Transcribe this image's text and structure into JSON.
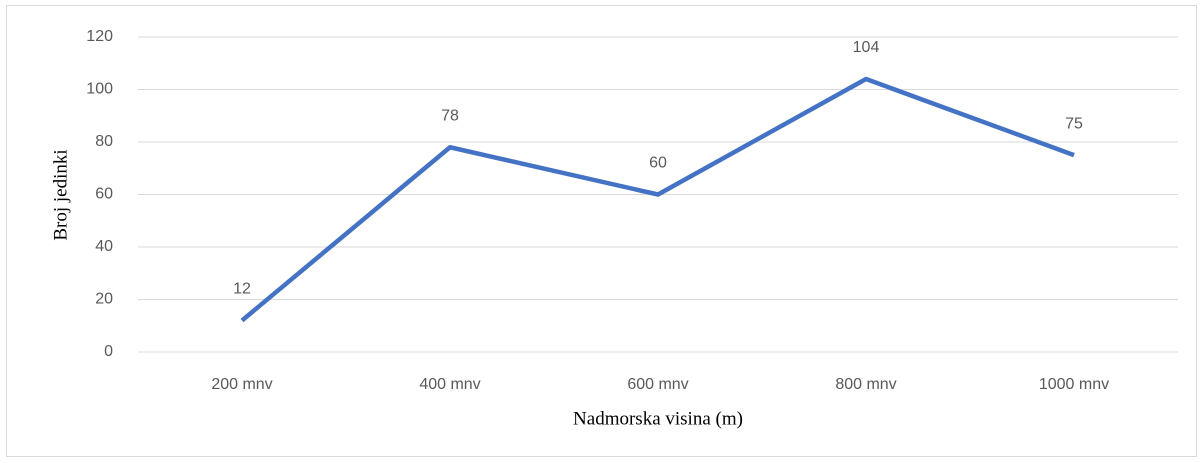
{
  "chart_data": {
    "type": "line",
    "categories": [
      "200 mnv",
      "400 mnv",
      "600 mnv",
      "800 mnv",
      "1000 mnv"
    ],
    "series": [
      {
        "name": "Broj jedinki",
        "color": "#4472c4",
        "values": [
          12,
          78,
          60,
          104,
          75
        ]
      }
    ],
    "x_label": "Nadmorska visina (m)",
    "y_label": "Broj jedinki",
    "ylim": [
      0,
      120
    ],
    "yticks": [
      0,
      20,
      40,
      60,
      80,
      100,
      120
    ],
    "grid": true,
    "data_labels": true
  }
}
